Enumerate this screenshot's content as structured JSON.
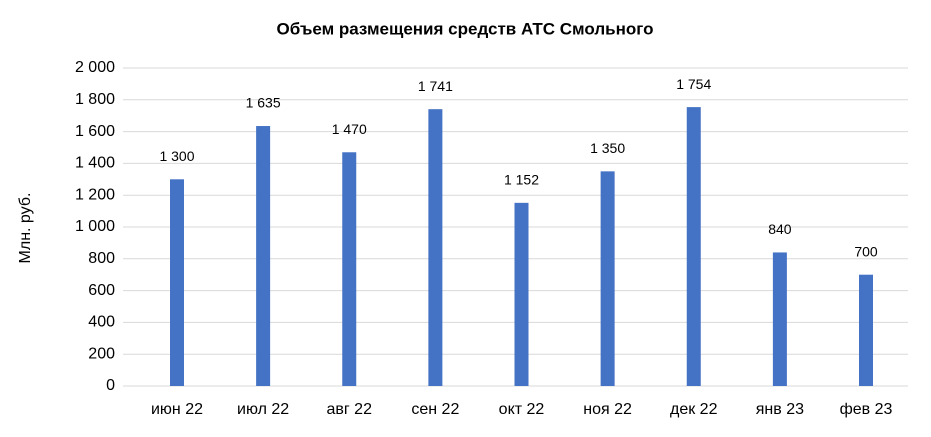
{
  "chart_data": {
    "type": "bar",
    "title": "Объем размещения средств АТС Смольного",
    "ylabel": "Млн. руб.",
    "categories": [
      "июн 22",
      "июл 22",
      "авг 22",
      "сен 22",
      "окт 22",
      "ноя 22",
      "дек 22",
      "янв 23",
      "фев 23"
    ],
    "values": [
      1300,
      1635,
      1470,
      1741,
      1152,
      1350,
      1754,
      840,
      700
    ],
    "value_labels": [
      "1 300",
      "1 635",
      "1 470",
      "1 741",
      "1 152",
      "1 350",
      "1 754",
      "840",
      "700"
    ],
    "color": "#4472c4",
    "ylim": [
      0,
      2000
    ],
    "yticks": [
      0,
      200,
      400,
      600,
      800,
      {
        "value": 1000,
        "label": "1 000"
      },
      {
        "value": 1200,
        "label": "1 200"
      },
      {
        "value": 1400,
        "label": "1 400"
      },
      {
        "value": 1600,
        "label": "1 600"
      },
      {
        "value": 1800,
        "label": "1 800"
      },
      {
        "value": 2000,
        "label": "2 000"
      }
    ],
    "grid": true
  }
}
